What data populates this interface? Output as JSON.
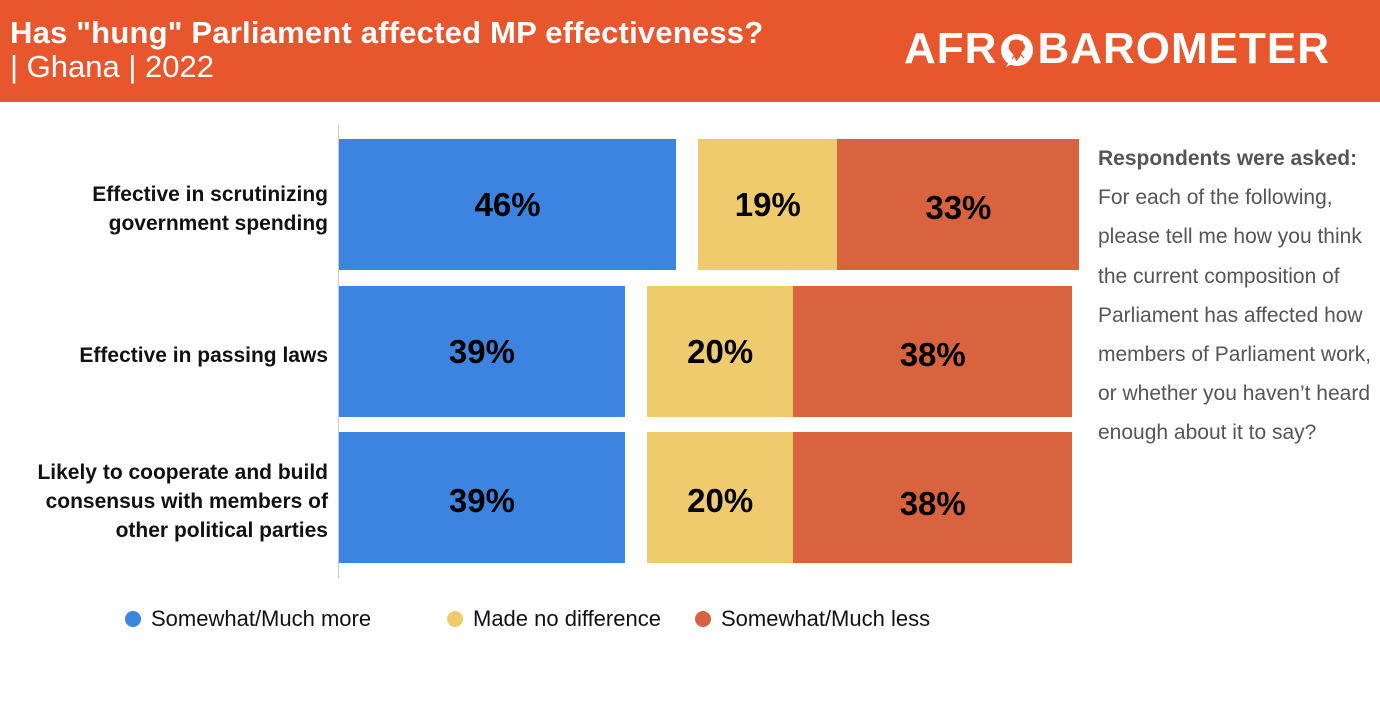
{
  "header": {
    "title": "Has \"hung\" Parliament affected MP effectiveness?",
    "subtitle": "| Ghana | 2022",
    "logo": {
      "prefix": "AFR",
      "globe_icon": "africa-globe-icon",
      "suffix": "BAROMETER"
    },
    "background_color": "#e8562d"
  },
  "notes": {
    "heading": "Respondents were asked:",
    "body": "For each of the following, please tell me how you think the current composition of Parliament has affected how members of Parliament work, or whether you haven’t heard enough about it to say?"
  },
  "chart_data": {
    "type": "bar",
    "orientation": "horizontal",
    "layout": "diverging-stacked",
    "title": "Has \"hung\" Parliament affected MP effectiveness?",
    "subtitle": "| Ghana | 2022",
    "xlabel": "",
    "ylabel": "",
    "unit": "%",
    "categories": [
      "Effective in scrutinizing government spending",
      "Effective in passing laws",
      "Likely to cooperate and build consensus with members of other political parties"
    ],
    "category_lines": [
      [
        "Effective in scrutinizing",
        "government spending"
      ],
      [
        "Effective in passing laws"
      ],
      [
        "Likely to cooperate and build",
        "consensus with members of",
        "other political parties"
      ]
    ],
    "series": [
      {
        "name": "Somewhat/Much more",
        "color": "#3d84e0",
        "values": [
          46,
          39,
          39
        ],
        "labels": [
          "46%",
          "39%",
          "39%"
        ]
      },
      {
        "name": "Made no difference",
        "color": "#f0cb6e",
        "values": [
          19,
          20,
          20
        ],
        "labels": [
          "19%",
          "20%",
          "20%"
        ]
      },
      {
        "name": "Somewhat/Much less",
        "color": "#d9633f",
        "values": [
          33,
          38,
          38
        ],
        "labels": [
          "33%",
          "38%",
          "38%"
        ]
      }
    ],
    "legend": {
      "position": "bottom",
      "items": [
        "Somewhat/Much more",
        "Made no difference",
        "Somewhat/Much less"
      ]
    },
    "grid": false,
    "xlim": [
      0,
      100
    ]
  }
}
